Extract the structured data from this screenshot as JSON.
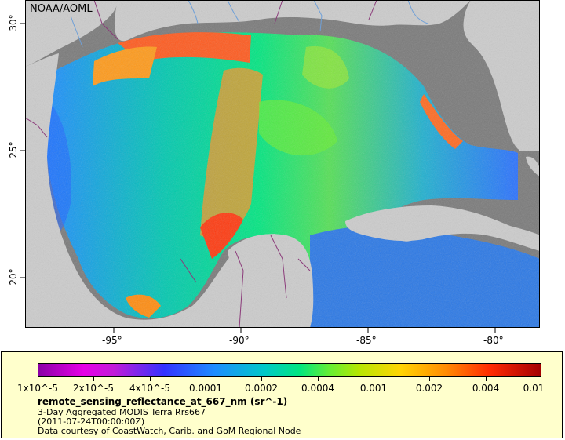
{
  "map": {
    "attribution": "NOAA/AOML",
    "lon_labels": [
      "-95°",
      "-90°",
      "-85°",
      "-80°"
    ],
    "lat_labels": [
      "30°",
      "25°",
      "20°"
    ],
    "colors": {
      "land": "#cccccc",
      "no_data": "#7a7a7a",
      "border": "#8b3a7a",
      "river": "#6fa0d8"
    }
  },
  "legend": {
    "ticks": [
      "1x10^-5",
      "2x10^-5",
      "4x10^-5",
      "0.0001",
      "0.0002",
      "0.0004",
      "0.001",
      "0.002",
      "0.004",
      "0.01"
    ],
    "variable": "remote_sensing_reflectance_at_667_nm (sr^-1)",
    "line1": "3-Day Aggregated MODIS Terra Rrs667",
    "line2": "(2011-07-24T00:00:00Z)",
    "line3": "Data courtesy of CoastWatch, Carib. and GoM Regional Node"
  }
}
